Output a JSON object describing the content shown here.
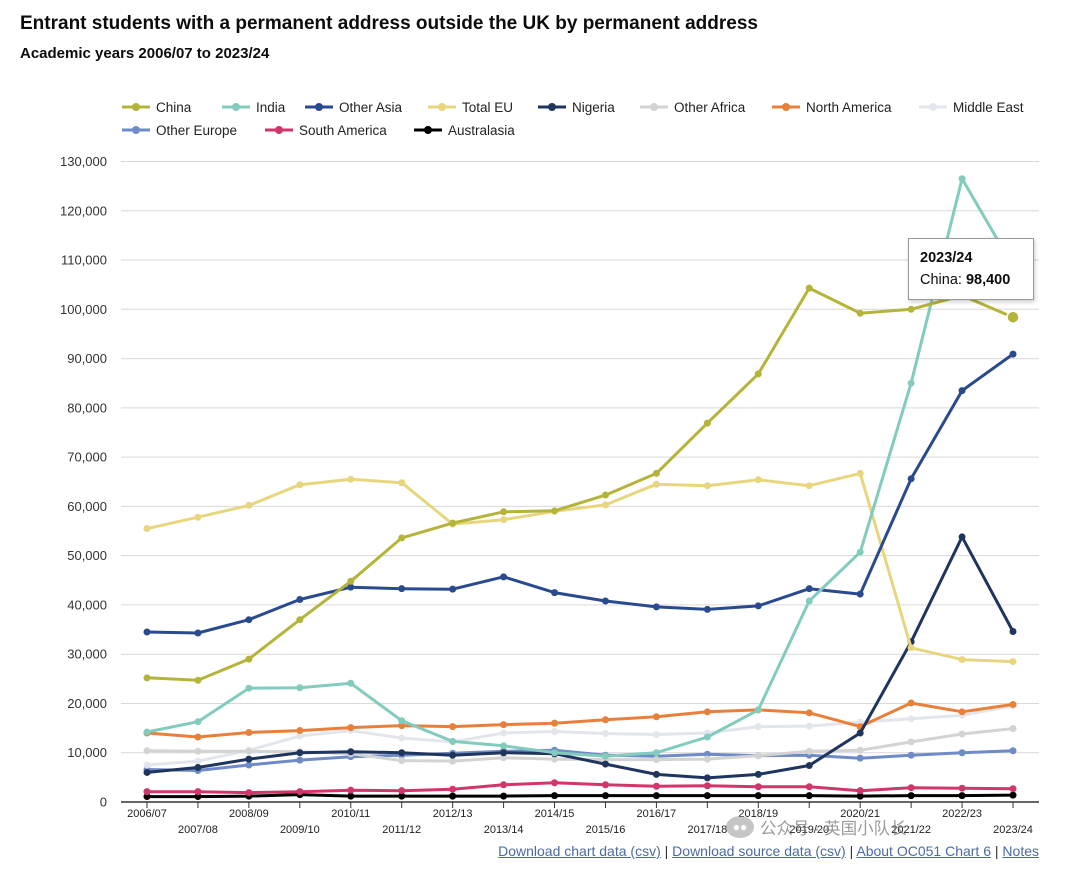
{
  "title": "Entrant students with a permanent address outside the UK by permanent address",
  "subtitle": "Academic years 2006/07 to 2023/24",
  "tooltip": {
    "year": "2023/24",
    "series": "China:",
    "value": "98,400"
  },
  "footer": {
    "link1": "Download chart data (csv)",
    "sep1": " | ",
    "link2": "Download source data (csv)",
    "sep2": " | ",
    "link3": "About OC051 Chart 6",
    "sep3": " | ",
    "link4": "Notes"
  },
  "watermark": {
    "text": "公众号 · 英国小队长"
  },
  "chart_data": {
    "type": "line",
    "x": [
      "2006/07",
      "2007/08",
      "2008/09",
      "2009/10",
      "2010/11",
      "2011/12",
      "2012/13",
      "2013/14",
      "2014/15",
      "2015/16",
      "2016/17",
      "2017/18",
      "2018/19",
      "2019/20",
      "2020/21",
      "2021/22",
      "2022/23",
      "2023/24"
    ],
    "y_ticks": [
      "0",
      "10,000",
      "20,000",
      "30,000",
      "40,000",
      "50,000",
      "60,000",
      "70,000",
      "80,000",
      "90,000",
      "100,000",
      "110,000",
      "120,000",
      "130,000"
    ],
    "ylim": [
      0,
      130000
    ],
    "grid": true,
    "legend_position": "top",
    "series": [
      {
        "name": "China",
        "color": "#b5b43a",
        "values": [
          25200,
          24700,
          29000,
          37000,
          44800,
          53600,
          56600,
          58900,
          59100,
          62300,
          66700,
          76900,
          86900,
          104300,
          99200,
          100000,
          102800,
          98400
        ]
      },
      {
        "name": "India",
        "color": "#83cbbd",
        "values": [
          14200,
          16300,
          23100,
          23200,
          24100,
          16500,
          12300,
          11400,
          10000,
          9300,
          10000,
          13200,
          18700,
          40800,
          50700,
          85000,
          126500,
          108700
        ]
      },
      {
        "name": "Other Asia",
        "color": "#2a4a8f",
        "values": [
          34500,
          34300,
          37000,
          41100,
          43600,
          43300,
          43200,
          45700,
          42500,
          40800,
          39600,
          39100,
          39800,
          43300,
          42200,
          65600,
          83500,
          90900
        ]
      },
      {
        "name": "Total EU",
        "color": "#e8d67e",
        "values": [
          55500,
          57800,
          60200,
          64400,
          65500,
          64800,
          56400,
          57300,
          59000,
          60300,
          64500,
          64200,
          65400,
          64200,
          66700,
          31300,
          28900,
          28500
        ]
      },
      {
        "name": "Nigeria",
        "color": "#1f355e",
        "values": [
          6000,
          7000,
          8700,
          10000,
          10200,
          10000,
          9500,
          10000,
          9800,
          7700,
          5600,
          4900,
          5600,
          7400,
          14000,
          32500,
          53800,
          34600
        ]
      },
      {
        "name": "Other Africa",
        "color": "#d3d3d3",
        "values": [
          10400,
          10300,
          10300,
          10200,
          9800,
          8400,
          8300,
          9000,
          8700,
          8600,
          8600,
          8700,
          9400,
          10300,
          10500,
          12200,
          13800,
          14900
        ]
      },
      {
        "name": "North America",
        "color": "#e8803b",
        "values": [
          14000,
          13200,
          14100,
          14500,
          15100,
          15500,
          15300,
          15700,
          16000,
          16700,
          17300,
          18300,
          18700,
          18100,
          15300,
          20100,
          18300,
          19800
        ]
      },
      {
        "name": "Middle East",
        "color": "#e2e6ec",
        "values": [
          7500,
          8300,
          10500,
          13400,
          14500,
          13000,
          12200,
          14000,
          14300,
          13900,
          13700,
          14000,
          15300,
          15400,
          16200,
          16900,
          17600,
          19500
        ]
      },
      {
        "name": "Other Europe",
        "color": "#6e8bc7",
        "values": [
          6600,
          6400,
          7500,
          8500,
          9200,
          9500,
          9900,
          10300,
          10500,
          9500,
          9300,
          9700,
          9400,
          9500,
          8900,
          9500,
          10000,
          10400
        ]
      },
      {
        "name": "South America",
        "color": "#d1366b",
        "values": [
          2100,
          2100,
          1900,
          2100,
          2400,
          2300,
          2600,
          3500,
          3900,
          3500,
          3200,
          3300,
          3100,
          3100,
          2300,
          2900,
          2800,
          2700
        ]
      },
      {
        "name": "Australasia",
        "color": "#000000",
        "values": [
          1100,
          1100,
          1200,
          1500,
          1200,
          1200,
          1200,
          1200,
          1300,
          1300,
          1300,
          1300,
          1300,
          1300,
          1200,
          1300,
          1300,
          1400
        ]
      }
    ]
  }
}
